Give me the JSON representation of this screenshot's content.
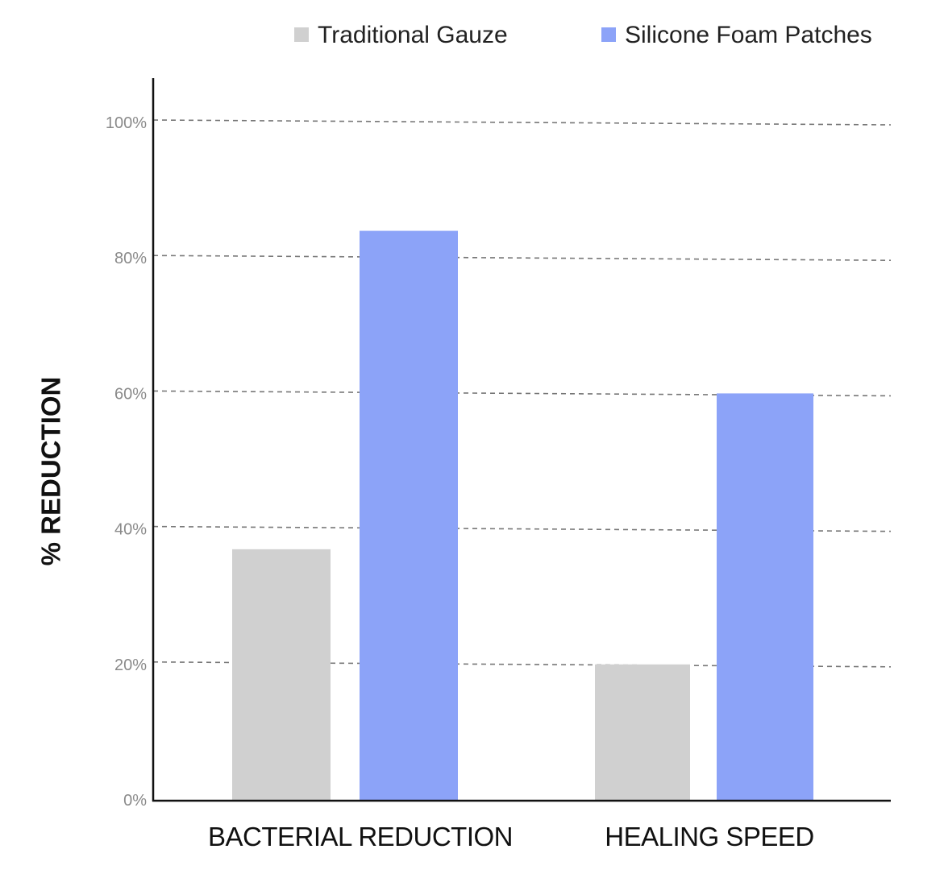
{
  "chart_data": {
    "type": "bar",
    "title": "",
    "xlabel": "",
    "ylabel": "% REDUCTION",
    "categories": [
      "BACTERIAL REDUCTION",
      "HEALING SPEED"
    ],
    "series": [
      {
        "name": "Traditional Gauze",
        "color": "#d0d0d0",
        "values": [
          37,
          20
        ]
      },
      {
        "name": "Silicone Foam Patches",
        "color": "#8ca3f8",
        "values": [
          84,
          60
        ]
      }
    ],
    "ylim": [
      0,
      100
    ],
    "yticks": [
      "0%",
      "20%",
      "40%",
      "60%",
      "80%",
      "100%"
    ],
    "ytick_values": [
      0,
      20,
      40,
      60,
      80,
      100
    ],
    "grid": "dashed horizontal",
    "legend_position": "top-right"
  }
}
